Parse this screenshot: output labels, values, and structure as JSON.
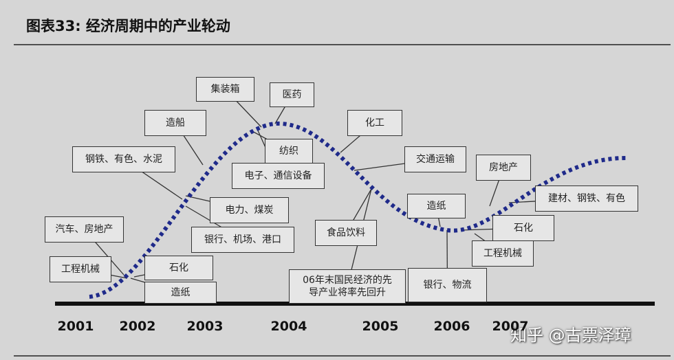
{
  "header": {
    "title": "图表33: 经济周期中的产业轮动"
  },
  "years": [
    "2001",
    "2002",
    "2003",
    "2004",
    "2005",
    "2006",
    "2007"
  ],
  "labels": [
    {
      "text": "集装箱"
    },
    {
      "text": "医药"
    },
    {
      "text": "造船"
    },
    {
      "text": "化工"
    },
    {
      "text": "钢铁、有色、水泥"
    },
    {
      "text": "纺织"
    },
    {
      "text": "交通运输"
    },
    {
      "text": "电子、通信设备"
    },
    {
      "text": "房地产"
    },
    {
      "text": "建材、钢铁、有色"
    },
    {
      "text": "电力、煤炭"
    },
    {
      "text": "造纸"
    },
    {
      "text": "汽车、房地产"
    },
    {
      "text": "食品饮料"
    },
    {
      "text": "银行、机场、港口"
    },
    {
      "text": "石化"
    },
    {
      "text": "工程机械"
    },
    {
      "text": "工程机械"
    },
    {
      "text": "石化"
    },
    {
      "lines": [
        "06年末国民经济的先",
        "导产业将率先回升"
      ]
    },
    {
      "text": "银行、物流"
    },
    {
      "text": "造纸"
    }
  ],
  "watermark": "知乎 @古票泽璋"
}
